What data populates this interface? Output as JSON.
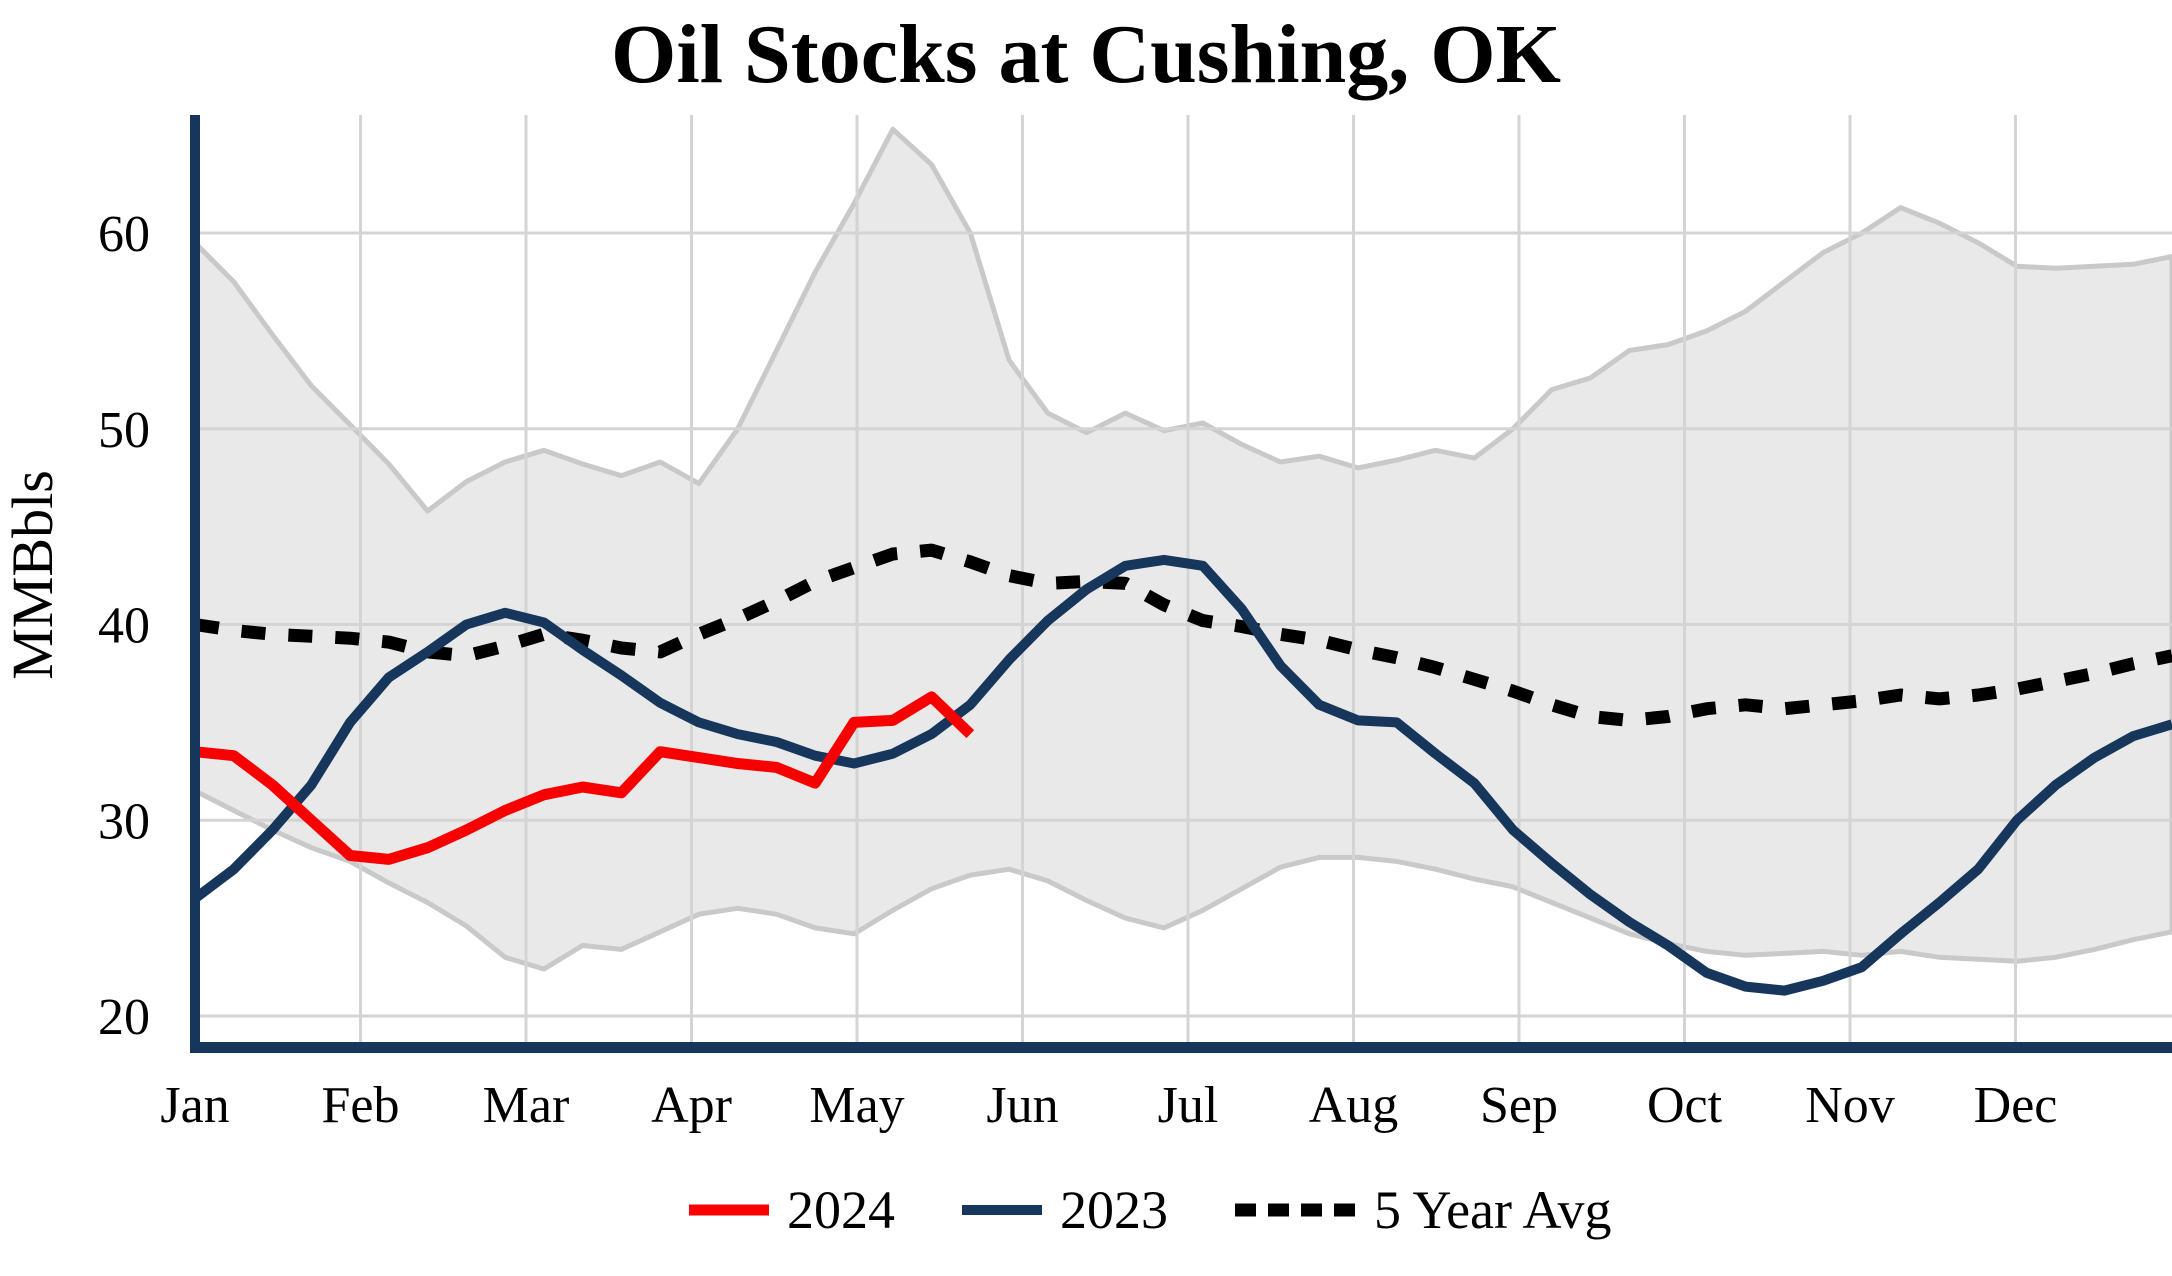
{
  "title": "Oil Stocks at Cushing, OK",
  "y_axis": {
    "label": "MMBbls",
    "ticks": [
      20,
      30,
      40,
      50,
      60
    ]
  },
  "x_axis": {
    "months": [
      "Jan",
      "Feb",
      "Mar",
      "Apr",
      "May",
      "Jun",
      "Jul",
      "Aug",
      "Sep",
      "Oct",
      "Nov",
      "Dec"
    ]
  },
  "legend": {
    "position": "bottom",
    "items": [
      {
        "label": "2024",
        "color": "#f80000",
        "style": "solid"
      },
      {
        "label": "2023",
        "color": "#16365c",
        "style": "solid"
      },
      {
        "label": "5 Year Avg",
        "color": "#000000",
        "style": "dotted"
      }
    ]
  },
  "colors": {
    "axis": "#16365c",
    "grid": "#d4d4d4",
    "band_fill": "#e9e9e9",
    "band_edge": "#c9c9c9",
    "series_2024": "#f80000",
    "series_2023": "#16365c",
    "series_avg": "#000000",
    "background": "#ffffff"
  },
  "chart_data": {
    "type": "line",
    "title": "Oil Stocks at Cushing, OK",
    "xlabel": "",
    "ylabel": "MMBbls",
    "ylim": [
      18.4,
      66.1
    ],
    "yticks": [
      20,
      30,
      40,
      50,
      60
    ],
    "grid": true,
    "legend_position": "bottom",
    "x_categories": [
      "Jan",
      "Feb",
      "Mar",
      "Apr",
      "May",
      "Jun",
      "Jul",
      "Aug",
      "Sep",
      "Oct",
      "Nov",
      "Dec"
    ],
    "x_resolution": "weekly (index 0-51, Jan through late Dec)",
    "units": "MMBbls",
    "band": {
      "name": "5-year range (shaded)",
      "upper": [
        59.5,
        57.5,
        54.8,
        52.2,
        50.2,
        48.2,
        45.8,
        47.3,
        48.3,
        48.9,
        48.2,
        47.6,
        48.3,
        47.2,
        50.0,
        54.0,
        58.0,
        61.5,
        65.3,
        63.5,
        60.0,
        53.5,
        50.8,
        49.8,
        50.8,
        49.9,
        50.3,
        49.2,
        48.3,
        48.6,
        48.0,
        48.4,
        48.9,
        48.5,
        50.0,
        52.0,
        52.6,
        54.0,
        54.3,
        55.0,
        56.0,
        57.5,
        59.0,
        60.0,
        61.3,
        60.5,
        59.5,
        58.3,
        58.2,
        58.3,
        58.4,
        58.8
      ],
      "lower": [
        31.5,
        30.5,
        29.5,
        28.6,
        27.9,
        26.8,
        25.8,
        24.6,
        23.0,
        22.4,
        23.6,
        23.4,
        24.3,
        25.2,
        25.5,
        25.2,
        24.5,
        24.2,
        25.4,
        26.5,
        27.2,
        27.5,
        26.9,
        25.9,
        25.0,
        24.5,
        25.4,
        26.5,
        27.6,
        28.1,
        28.1,
        27.9,
        27.5,
        27.0,
        26.6,
        25.8,
        25.0,
        24.2,
        23.7,
        23.3,
        23.1,
        23.2,
        23.3,
        23.1,
        23.3,
        23.0,
        22.9,
        22.8,
        23.0,
        23.4,
        23.9,
        24.3
      ]
    },
    "series": [
      {
        "name": "2024",
        "color": "#f80000",
        "style": "solid",
        "values": [
          33.5,
          33.3,
          31.8,
          30.0,
          28.2,
          28.0,
          28.6,
          29.5,
          30.5,
          31.3,
          31.7,
          31.4,
          33.5,
          33.2,
          32.9,
          32.7,
          31.9,
          35.0,
          35.1,
          36.3,
          34.4
        ]
      },
      {
        "name": "2023",
        "color": "#16365c",
        "style": "solid",
        "values": [
          26.0,
          27.5,
          29.5,
          31.8,
          35.0,
          37.3,
          38.6,
          40.0,
          40.6,
          40.1,
          38.7,
          37.4,
          36.0,
          35.0,
          34.4,
          34.0,
          33.3,
          32.9,
          33.4,
          34.4,
          35.9,
          38.2,
          40.2,
          41.8,
          43.0,
          43.3,
          43.0,
          40.8,
          37.9,
          35.9,
          35.1,
          35.0,
          33.4,
          31.9,
          29.5,
          27.8,
          26.2,
          24.8,
          23.6,
          22.2,
          21.5,
          21.3,
          21.8,
          22.5,
          24.2,
          25.8,
          27.5,
          30.0,
          31.8,
          33.2,
          34.3,
          34.9
        ]
      },
      {
        "name": "5 Year Avg",
        "color": "#000000",
        "style": "dotted",
        "values": [
          40.0,
          39.7,
          39.5,
          39.4,
          39.3,
          39.1,
          38.6,
          38.4,
          38.9,
          39.5,
          39.2,
          38.8,
          38.6,
          39.5,
          40.3,
          41.2,
          42.2,
          42.9,
          43.6,
          43.8,
          43.2,
          42.5,
          42.1,
          42.2,
          42.1,
          41.0,
          40.2,
          39.9,
          39.5,
          39.2,
          38.7,
          38.3,
          37.8,
          37.2,
          36.6,
          35.9,
          35.3,
          35.1,
          35.3,
          35.7,
          35.9,
          35.7,
          35.9,
          36.1,
          36.4,
          36.2,
          36.4,
          36.7,
          37.1,
          37.5,
          38.0,
          38.4
        ]
      }
    ]
  }
}
